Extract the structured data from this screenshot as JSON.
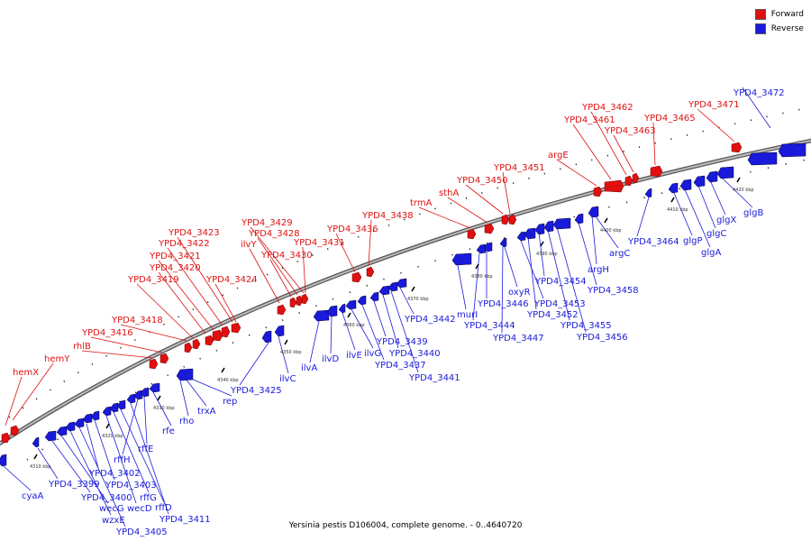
{
  "caption": "Yersinia pestis D106004, complete genome. - 0..4640720",
  "legend": [
    {
      "label": "Forward",
      "color": "#e01010"
    },
    {
      "label": "Reverse",
      "color": "#1a1adb"
    }
  ],
  "colors": {
    "forward": "#e01010",
    "reverse": "#1a1adb",
    "backbone": "#808080"
  },
  "scale_labels": [
    "4310 kbp",
    "4320 kbp",
    "4330 kbp",
    "4340 kbp",
    "4350 kbp",
    "4360 kbp",
    "4370 kbp",
    "4380 kbp",
    "4390 kbp",
    "4400 kbp",
    "4410 kbp",
    "4420 kbp"
  ],
  "forward_labels": [
    "hemX",
    "hemY",
    "rhlB",
    "YPD4_3416",
    "YPD4_3418",
    "YPD4_3419",
    "YPD4_3420",
    "YPD4_3421",
    "YPD4_3422",
    "YPD4_3423",
    "YPD4_3424",
    "ilvY",
    "YPD4_3430",
    "YPD4_3428",
    "YPD4_3429",
    "YPD4_3431",
    "YPD4_3436",
    "YPD4_3438",
    "trmA",
    "sthA",
    "YPD4_3450",
    "YPD4_3451",
    "argE",
    "YPD4_3461",
    "YPD4_3462",
    "YPD4_3463",
    "YPD4_3465",
    "YPD4_3471"
  ],
  "reverse_labels": [
    "YPD4_3472",
    "cyaA",
    "YPD4_3399",
    "YPD4_3400",
    "wecG",
    "wzxE",
    "YPD4_3405",
    "YPD4_3402",
    "YPD4_3403",
    "wecD",
    "rffG",
    "rffD",
    "YPD4_3411",
    "rffH",
    "rffE",
    "rfe",
    "rho",
    "trxA",
    "rep",
    "YPD4_3425",
    "ilvC",
    "ilvA",
    "ilvD",
    "ilvE",
    "ilvG",
    "YPD4_3437",
    "YPD4_3439",
    "YPD4_3440",
    "YPD4_3441",
    "YPD4_3442",
    "murI",
    "YPD4_3444",
    "YPD4_3446",
    "YPD4_3447",
    "oxyR",
    "YPD4_3453",
    "YPD4_3452",
    "YPD4_3454",
    "YPD4_3455",
    "YPD4_3456",
    "YPD4_3458",
    "argH",
    "argC",
    "YPD4_3464",
    "glgP",
    "glgA",
    "glgC",
    "glgX",
    "glgB"
  ]
}
